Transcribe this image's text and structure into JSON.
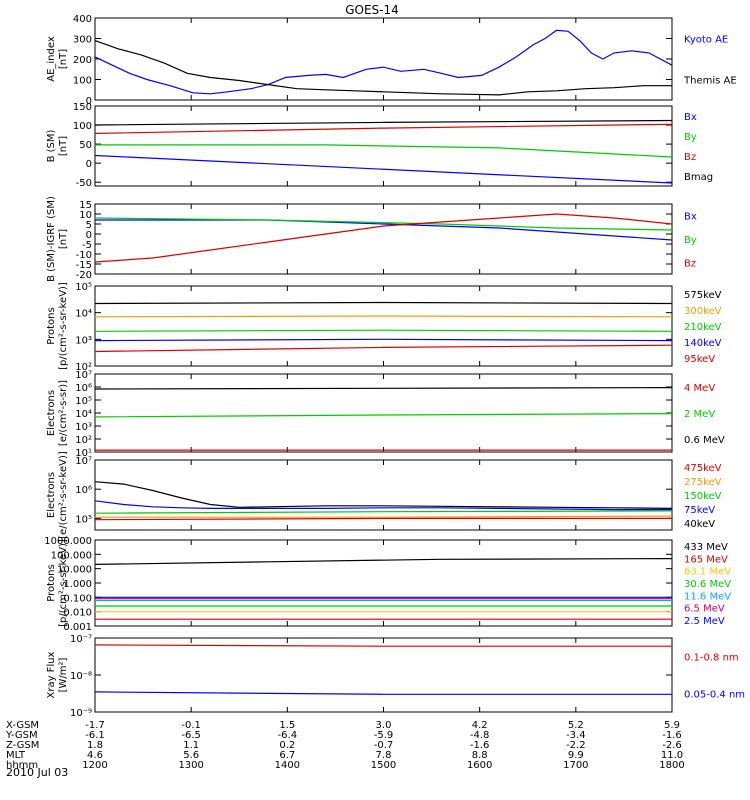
{
  "title": "GOES-14",
  "date_label": "2010 Jul 03",
  "chart_data": [
    {
      "type": "line",
      "ylabel": [
        "AE_index",
        "[nT]"
      ],
      "ylim": [
        0,
        400
      ],
      "log": false,
      "yticks": [
        0,
        100,
        200,
        300,
        400
      ],
      "ytick_labels": [
        "0",
        "100",
        "200",
        "300",
        "400"
      ],
      "series": [
        {
          "name": "Kyoto AE",
          "color": "#0000ff",
          "x": [
            0,
            0.03,
            0.06,
            0.09,
            0.13,
            0.17,
            0.2,
            0.23,
            0.27,
            0.3,
            0.33,
            0.37,
            0.4,
            0.43,
            0.47,
            0.5,
            0.53,
            0.57,
            0.6,
            0.63,
            0.67,
            0.7,
            0.73,
            0.76,
            0.78,
            0.8,
            0.82,
            0.84,
            0.86,
            0.88,
            0.9,
            0.93,
            0.96,
            1.0
          ],
          "y": [
            210,
            170,
            130,
            100,
            70,
            35,
            30,
            40,
            55,
            75,
            110,
            120,
            125,
            110,
            150,
            160,
            140,
            150,
            130,
            110,
            120,
            160,
            210,
            270,
            300,
            340,
            335,
            290,
            230,
            200,
            230,
            240,
            230,
            170
          ]
        },
        {
          "name": "Themis AE",
          "color": "#000000",
          "x": [
            0,
            0.04,
            0.08,
            0.12,
            0.16,
            0.2,
            0.25,
            0.3,
            0.35,
            0.4,
            0.45,
            0.5,
            0.55,
            0.6,
            0.65,
            0.7,
            0.75,
            0.8,
            0.85,
            0.9,
            0.95,
            1.0
          ],
          "y": [
            290,
            250,
            220,
            180,
            130,
            110,
            95,
            75,
            55,
            50,
            45,
            40,
            35,
            30,
            28,
            25,
            40,
            45,
            55,
            60,
            70,
            70
          ]
        }
      ]
    },
    {
      "type": "line",
      "ylabel": [
        "B (SM)",
        "[nT]"
      ],
      "ylim": [
        -60,
        150
      ],
      "log": false,
      "yticks": [
        -50,
        0,
        50,
        100,
        150
      ],
      "ytick_labels": [
        "-50",
        "0",
        "50",
        "100",
        "150"
      ],
      "series": [
        {
          "name": "Bx",
          "color": "#0000ff",
          "x": [
            0,
            1
          ],
          "y": [
            20,
            -52
          ]
        },
        {
          "name": "By",
          "color": "#00cc00",
          "x": [
            0,
            0.4,
            0.7,
            1.0
          ],
          "y": [
            48,
            48,
            40,
            16
          ]
        },
        {
          "name": "Bz",
          "color": "#dd0000",
          "x": [
            0,
            0.5,
            1.0
          ],
          "y": [
            78,
            92,
            102
          ]
        },
        {
          "name": "Bmag",
          "color": "#000000",
          "x": [
            0,
            0.5,
            1.0
          ],
          "y": [
            100,
            107,
            112
          ]
        }
      ]
    },
    {
      "type": "line",
      "ylabel": [
        "B (SM)-IGRF (SM)",
        "[nT]"
      ],
      "ylim": [
        -20,
        15
      ],
      "log": false,
      "yticks": [
        -20,
        -15,
        -10,
        -5,
        0,
        5,
        10,
        15
      ],
      "ytick_labels": [
        "-20",
        "-15",
        "-10",
        "-5",
        "0",
        "5",
        "10",
        "15"
      ],
      "series": [
        {
          "name": "Bx",
          "color": "#0000ff",
          "x": [
            0,
            0.3,
            0.5,
            0.7,
            0.85,
            1.0
          ],
          "y": [
            7,
            7,
            5,
            3,
            0,
            -3
          ]
        },
        {
          "name": "By",
          "color": "#00cc00",
          "x": [
            0,
            0.3,
            0.6,
            0.8,
            1.0
          ],
          "y": [
            8,
            7,
            5,
            3,
            2
          ]
        },
        {
          "name": "Bz",
          "color": "#dd0000",
          "x": [
            0,
            0.1,
            0.2,
            0.3,
            0.4,
            0.5,
            0.6,
            0.7,
            0.8,
            0.9,
            1.0
          ],
          "y": [
            -14,
            -12,
            -8,
            -4,
            0,
            4,
            6,
            8,
            10,
            8,
            5
          ]
        }
      ]
    },
    {
      "type": "line",
      "ylabel": [
        "Protons",
        "[p/(cm²-s-sr-keV)]"
      ],
      "ylim": [
        100,
        100000
      ],
      "log": true,
      "yticks": [
        100,
        1000,
        10000,
        100000
      ],
      "ytick_labels": [
        "10²",
        "10³",
        "10⁴",
        "10⁵"
      ],
      "series": [
        {
          "name": "575keV",
          "color": "#000000",
          "x": [
            0,
            0.5,
            1.0
          ],
          "y": [
            22000,
            24000,
            22000
          ]
        },
        {
          "name": "300keV",
          "color": "#ff9900",
          "x": [
            0,
            0.5,
            1.0
          ],
          "y": [
            7000,
            7500,
            7000
          ]
        },
        {
          "name": "210keV",
          "color": "#00cc00",
          "x": [
            0,
            0.5,
            1.0
          ],
          "y": [
            2000,
            2200,
            2000
          ]
        },
        {
          "name": "140keV",
          "color": "#0000ff",
          "x": [
            0,
            0.5,
            1.0
          ],
          "y": [
            900,
            1000,
            900
          ]
        },
        {
          "name": "95keV",
          "color": "#dd0000",
          "x": [
            0,
            0.5,
            1.0
          ],
          "y": [
            350,
            500,
            600
          ]
        }
      ]
    },
    {
      "type": "line",
      "ylabel": [
        "Electrons",
        "[e/(cm²-s-sr)]"
      ],
      "ylim": [
        10,
        10000000
      ],
      "log": true,
      "yticks": [
        10,
        100,
        1000,
        10000,
        100000,
        1000000,
        10000000
      ],
      "ytick_labels": [
        "10¹",
        "10²",
        "10³",
        "10⁴",
        "10⁵",
        "10⁶",
        "10⁷"
      ],
      "series": [
        {
          "name": "4 MeV",
          "color": "#dd0000",
          "x": [
            0,
            1
          ],
          "y": [
            14,
            14
          ]
        },
        {
          "name": "2 MeV",
          "color": "#00cc00",
          "x": [
            0,
            0.5,
            1.0
          ],
          "y": [
            5000,
            7000,
            9000
          ]
        },
        {
          "name": "0.6 MeV",
          "color": "#000000",
          "x": [
            0,
            0.5,
            1.0
          ],
          "y": [
            700000,
            800000,
            900000
          ]
        }
      ]
    },
    {
      "type": "line",
      "ylabel": [
        "Electrons",
        "[e/(cm²-s-sr-keV)]"
      ],
      "ylim": [
        40000,
        10000000
      ],
      "log": true,
      "yticks": [
        100000,
        1000000,
        10000000
      ],
      "ytick_labels": [
        "10⁵",
        "10⁶",
        "10⁷"
      ],
      "series": [
        {
          "name": "475keV",
          "color": "#dd0000",
          "x": [
            0,
            0.5,
            1.0
          ],
          "y": [
            90000,
            100000,
            100000
          ]
        },
        {
          "name": "275keV",
          "color": "#ff9900",
          "x": [
            0,
            0.5,
            1.0
          ],
          "y": [
            110000,
            110000,
            120000
          ]
        },
        {
          "name": "150keV",
          "color": "#00cc00",
          "x": [
            0,
            0.5,
            1.0
          ],
          "y": [
            150000,
            170000,
            180000
          ]
        },
        {
          "name": "75keV",
          "color": "#0000ff",
          "x": [
            0,
            0.05,
            0.1,
            0.15,
            0.2,
            0.3,
            0.4,
            0.5,
            0.6,
            0.7,
            0.8,
            0.9,
            1.0
          ],
          "y": [
            400000,
            300000,
            250000,
            230000,
            220000,
            220000,
            220000,
            230000,
            230000,
            220000,
            210000,
            200000,
            200000
          ]
        },
        {
          "name": "40keV",
          "color": "#000000",
          "x": [
            0,
            0.05,
            0.1,
            0.15,
            0.2,
            0.25,
            0.3,
            0.4,
            0.5,
            0.6,
            0.7,
            0.8,
            0.9,
            1.0
          ],
          "y": [
            1800000,
            1500000,
            900000,
            500000,
            300000,
            240000,
            250000,
            270000,
            270000,
            260000,
            250000,
            240000,
            230000,
            220000
          ]
        }
      ]
    },
    {
      "type": "line",
      "ylabel": [
        "Protons",
        "[p/(cm²-s-sr-keV)]"
      ],
      "ylim": [
        0.001,
        1000
      ],
      "log": true,
      "yticks": [
        0.001,
        0.01,
        0.1,
        1,
        10,
        100,
        1000
      ],
      "ytick_labels": [
        "0.001",
        "0.010",
        "0.100",
        "1.000",
        "10.000",
        "100.000",
        "1000.000"
      ],
      "series": [
        {
          "name": "433 MeV",
          "color": "#000000",
          "x": [
            0,
            0.3,
            0.6,
            1.0
          ],
          "y": [
            20,
            30,
            45,
            50
          ]
        },
        {
          "name": "165 MeV",
          "color": "#dd0000",
          "x": [
            0,
            1
          ],
          "y": [
            0.003,
            0.003
          ]
        },
        {
          "name": "63.1 MeV",
          "color": "#ffcc00",
          "x": [
            0,
            1
          ],
          "y": [
            0.01,
            0.01
          ]
        },
        {
          "name": "30.6 MeV",
          "color": "#00cc00",
          "x": [
            0,
            1
          ],
          "y": [
            0.025,
            0.025
          ]
        },
        {
          "name": "11.6 MeV",
          "color": "#00aaff",
          "x": [
            0,
            1
          ],
          "y": [
            0.06,
            0.06
          ]
        },
        {
          "name": "6.5 MeV",
          "color": "#cc0066",
          "x": [
            0,
            1
          ],
          "y": [
            0.08,
            0.08
          ]
        },
        {
          "name": "2.5 MeV",
          "color": "#0000ff",
          "x": [
            0,
            1
          ],
          "y": [
            0.1,
            0.1
          ]
        }
      ]
    },
    {
      "type": "line",
      "ylabel": [
        "Xray Flux",
        "[W/m²]"
      ],
      "ylim": [
        1e-09,
        1e-07
      ],
      "log": true,
      "yticks": [
        1e-09,
        1e-08,
        1e-07
      ],
      "ytick_labels": [
        "10⁻⁹",
        "10⁻⁸",
        "10⁻⁷"
      ],
      "series": [
        {
          "name": "0.1-0.8 nm",
          "color": "#dd0000",
          "x": [
            0,
            0.5,
            1.0
          ],
          "y": [
            6.5e-08,
            6e-08,
            6e-08
          ]
        },
        {
          "name": "0.05-0.4 nm",
          "color": "#0000ff",
          "x": [
            0,
            0.5,
            1.0
          ],
          "y": [
            3.5e-09,
            3e-09,
            3e-09
          ]
        }
      ]
    }
  ],
  "x_axis": {
    "rows": [
      {
        "label": "X-GSM",
        "values": [
          "-1.7",
          "-0.1",
          "1.5",
          "3.0",
          "4.2",
          "5.2",
          "5.9"
        ]
      },
      {
        "label": "Y-GSM",
        "values": [
          "-6.1",
          "-6.5",
          "-6.4",
          "-5.9",
          "-4.8",
          "-3.4",
          "-1.6"
        ]
      },
      {
        "label": "Z-GSM",
        "values": [
          "1.8",
          "1.1",
          "0.2",
          "-0.7",
          "-1.6",
          "-2.2",
          "-2.6"
        ]
      },
      {
        "label": "MLT",
        "values": [
          "4.6",
          "5.6",
          "6.7",
          "7.8",
          "8.8",
          "9.9",
          "11.0"
        ]
      },
      {
        "label": "hhmm",
        "values": [
          "1200",
          "1300",
          "1400",
          "1500",
          "1600",
          "1700",
          "1800"
        ]
      }
    ]
  }
}
